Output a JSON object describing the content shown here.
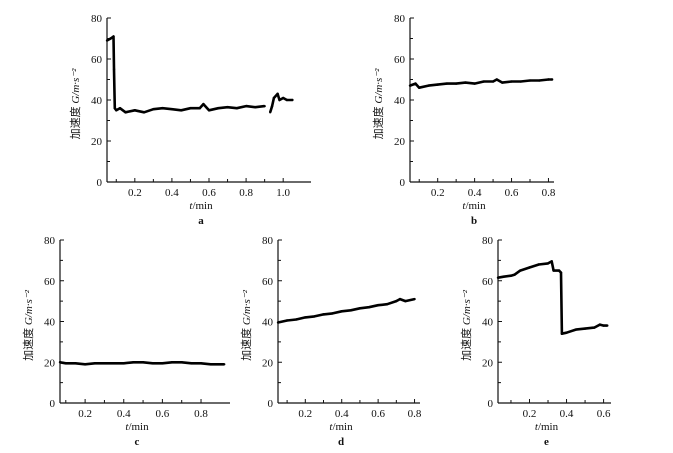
{
  "chart_data": [
    {
      "type": "line",
      "panel_label": "a",
      "xlabel_var": "t",
      "xlabel_unit": "/min",
      "ylabel_cn": "加速度",
      "ylabel_unit": "G/m·s⁻²",
      "xlim": [
        0.05,
        1.15
      ],
      "ylim": [
        0,
        80
      ],
      "xticks": [
        0.2,
        0.4,
        0.6,
        0.8,
        1.0
      ],
      "yticks": [
        0,
        20,
        40,
        60,
        80
      ],
      "grid": false,
      "points": [
        [
          0.05,
          69
        ],
        [
          0.07,
          70
        ],
        [
          0.085,
          71
        ],
        [
          0.088,
          55
        ],
        [
          0.092,
          36
        ],
        [
          0.1,
          35
        ],
        [
          0.12,
          36
        ],
        [
          0.15,
          34
        ],
        [
          0.2,
          35
        ],
        [
          0.25,
          34
        ],
        [
          0.3,
          35.5
        ],
        [
          0.35,
          36
        ],
        [
          0.4,
          35.5
        ],
        [
          0.45,
          35
        ],
        [
          0.5,
          36
        ],
        [
          0.55,
          36
        ],
        [
          0.57,
          38
        ],
        [
          0.6,
          35
        ],
        [
          0.65,
          36
        ],
        [
          0.7,
          36.5
        ],
        [
          0.75,
          36
        ],
        [
          0.8,
          37
        ],
        [
          0.85,
          36.5
        ],
        [
          0.9,
          37
        ],
        null,
        [
          0.93,
          34
        ],
        [
          0.94,
          37
        ],
        [
          0.95,
          41
        ],
        [
          0.97,
          43
        ],
        [
          0.98,
          40
        ],
        [
          1.0,
          41
        ],
        [
          1.02,
          40
        ],
        [
          1.05,
          40
        ]
      ]
    },
    {
      "type": "line",
      "panel_label": "b",
      "xlabel_var": "t",
      "xlabel_unit": "/min",
      "ylabel_cn": "加速度",
      "ylabel_unit": "G/m·s⁻²",
      "xlim": [
        0.05,
        0.83
      ],
      "ylim": [
        0,
        80
      ],
      "xticks": [
        0.2,
        0.4,
        0.6,
        0.8
      ],
      "yticks": [
        0,
        20,
        40,
        60,
        80
      ],
      "grid": false,
      "points": [
        [
          0.05,
          47
        ],
        [
          0.08,
          48
        ],
        [
          0.1,
          46
        ],
        [
          0.15,
          47
        ],
        [
          0.2,
          47.5
        ],
        [
          0.25,
          48
        ],
        [
          0.3,
          48
        ],
        [
          0.35,
          48.5
        ],
        [
          0.4,
          48
        ],
        [
          0.45,
          49
        ],
        [
          0.5,
          49
        ],
        [
          0.52,
          50
        ],
        [
          0.55,
          48.5
        ],
        [
          0.6,
          49
        ],
        [
          0.65,
          49
        ],
        [
          0.7,
          49.5
        ],
        [
          0.75,
          49.5
        ],
        [
          0.8,
          50
        ],
        [
          0.82,
          50
        ]
      ]
    },
    {
      "type": "line",
      "panel_label": "c",
      "xlabel_var": "t",
      "xlabel_unit": "/min",
      "ylabel_cn": "加速度",
      "ylabel_unit": "G/m·s⁻²",
      "xlim": [
        0.07,
        0.95
      ],
      "ylim": [
        0,
        80
      ],
      "xticks": [
        0.2,
        0.4,
        0.6,
        0.8
      ],
      "yticks": [
        0,
        20,
        40,
        60,
        80
      ],
      "grid": false,
      "points": [
        [
          0.07,
          20
        ],
        [
          0.1,
          19.5
        ],
        [
          0.15,
          19.5
        ],
        [
          0.2,
          19
        ],
        [
          0.25,
          19.5
        ],
        [
          0.3,
          19.5
        ],
        [
          0.35,
          19.5
        ],
        [
          0.4,
          19.5
        ],
        [
          0.45,
          20
        ],
        [
          0.5,
          20
        ],
        [
          0.55,
          19.5
        ],
        [
          0.6,
          19.5
        ],
        [
          0.65,
          20
        ],
        [
          0.7,
          20
        ],
        [
          0.75,
          19.5
        ],
        [
          0.8,
          19.5
        ],
        [
          0.85,
          19
        ],
        [
          0.92,
          19
        ]
      ]
    },
    {
      "type": "line",
      "panel_label": "d",
      "xlabel_var": "t",
      "xlabel_unit": "/min",
      "ylabel_cn": "加速度",
      "ylabel_unit": "G/m·s⁻²",
      "xlim": [
        0.05,
        0.83
      ],
      "ylim": [
        0,
        80
      ],
      "xticks": [
        0.2,
        0.4,
        0.6,
        0.8
      ],
      "yticks": [
        0,
        20,
        40,
        60,
        80
      ],
      "grid": false,
      "points": [
        [
          0.05,
          39.5
        ],
        [
          0.1,
          40.5
        ],
        [
          0.15,
          41
        ],
        [
          0.2,
          42
        ],
        [
          0.25,
          42.5
        ],
        [
          0.3,
          43.5
        ],
        [
          0.35,
          44
        ],
        [
          0.4,
          45
        ],
        [
          0.45,
          45.5
        ],
        [
          0.5,
          46.5
        ],
        [
          0.55,
          47
        ],
        [
          0.6,
          48
        ],
        [
          0.65,
          48.5
        ],
        [
          0.7,
          50
        ],
        [
          0.72,
          51
        ],
        [
          0.75,
          50
        ],
        [
          0.8,
          51
        ]
      ]
    },
    {
      "type": "line",
      "panel_label": "e",
      "xlabel_var": "t",
      "xlabel_unit": "/min",
      "ylabel_cn": "加速度",
      "ylabel_unit": "G/m·s⁻²",
      "xlim": [
        0.03,
        0.64
      ],
      "ylim": [
        0,
        80
      ],
      "xticks": [
        0.2,
        0.4,
        0.6
      ],
      "yticks": [
        0,
        20,
        40,
        60,
        80
      ],
      "grid": false,
      "points": [
        [
          0.03,
          61.5
        ],
        [
          0.06,
          62
        ],
        [
          0.1,
          62.5
        ],
        [
          0.12,
          63
        ],
        [
          0.15,
          65
        ],
        [
          0.2,
          66.5
        ],
        [
          0.25,
          68
        ],
        [
          0.3,
          68.5
        ],
        [
          0.32,
          69.5
        ],
        [
          0.33,
          65
        ],
        [
          0.36,
          65
        ],
        [
          0.37,
          64
        ],
        [
          0.375,
          34
        ],
        [
          0.4,
          34.5
        ],
        [
          0.45,
          36
        ],
        [
          0.5,
          36.5
        ],
        [
          0.55,
          37
        ],
        [
          0.58,
          38.5
        ],
        [
          0.6,
          38
        ],
        [
          0.62,
          38
        ]
      ]
    }
  ]
}
